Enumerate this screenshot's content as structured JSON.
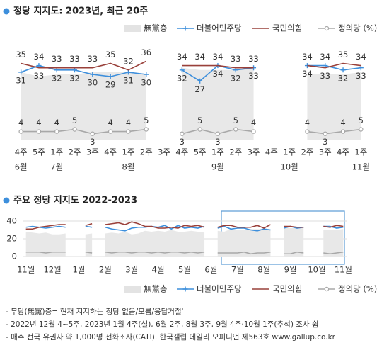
{
  "chart_data": [
    {
      "type": "line",
      "title": "정당 지지도: 2023년, 최근 20주",
      "categories": [
        "4주",
        "5주",
        "1주",
        "2주",
        "3주",
        "4주",
        "1주",
        "2주",
        "3주",
        "4주",
        "5주",
        "1주",
        "2주",
        "3주",
        "4주",
        "1주",
        "2주",
        "3주",
        "4주",
        "1주"
      ],
      "month_labels": [
        "6월",
        null,
        "7월",
        null,
        null,
        null,
        "8월",
        null,
        null,
        null,
        null,
        "9월",
        null,
        null,
        null,
        "10월",
        null,
        null,
        null,
        "11월"
      ],
      "ylim": [
        0,
        40
      ],
      "data_labels": true,
      "series": [
        {
          "name": "無黨층",
          "color": "#e8e8e8",
          "style": "area",
          "values": [
            31,
            29,
            30,
            30,
            31,
            31,
            31,
            30,
            null,
            33,
            32,
            32,
            32,
            33,
            null,
            null,
            30,
            30,
            30,
            31
          ]
        },
        {
          "name": "더불어민주당",
          "color": "#3d8fdc",
          "style": "line",
          "marker": "plus",
          "values": [
            31,
            34,
            32,
            32,
            30,
            29,
            31,
            30,
            null,
            32,
            27,
            34,
            32,
            33,
            null,
            null,
            34,
            34,
            32,
            33
          ]
        },
        {
          "name": "국민의힘",
          "color": "#99403a",
          "style": "line",
          "marker": "none",
          "values": [
            35,
            33,
            33,
            33,
            33,
            35,
            32,
            36,
            null,
            34,
            34,
            34,
            33,
            33,
            null,
            null,
            34,
            33,
            35,
            34
          ]
        },
        {
          "name": "정의당 (%)",
          "color": "#a8a8a8",
          "style": "line",
          "marker": "circle",
          "values": [
            4,
            4,
            4,
            5,
            3,
            4,
            4,
            5,
            null,
            3,
            5,
            3,
            5,
            4,
            null,
            null,
            4,
            3,
            4,
            5
          ]
        }
      ]
    },
    {
      "type": "line",
      "title": "주요 정당 지지도 2022-2023",
      "categories": [
        "11월",
        null,
        null,
        null,
        "12월",
        null,
        null,
        null,
        "1월",
        null,
        null,
        null,
        "2월",
        null,
        null,
        null,
        "3월",
        null,
        null,
        null,
        "4월",
        null,
        null,
        null,
        "5월",
        null,
        null,
        null,
        "6월",
        null,
        null,
        null,
        "7월",
        null,
        null,
        null,
        "8월",
        null,
        null,
        null,
        "9월",
        null,
        null,
        null,
        "10월",
        null,
        null,
        null,
        "11월"
      ],
      "ylim": [
        0,
        40
      ],
      "yticks": [
        0,
        20,
        40
      ],
      "grid": true,
      "data_labels": false,
      "series": [
        {
          "name": "無黨층",
          "color": "#e8e8e8",
          "style": "area",
          "values": [
            28,
            27,
            26,
            27,
            25,
            25,
            26,
            null,
            null,
            25,
            26,
            null,
            26,
            27,
            26,
            28,
            25,
            26,
            29,
            28,
            29,
            28,
            30,
            28,
            28,
            29,
            28,
            27,
            null,
            29,
            28,
            31,
            30,
            30,
            31,
            31,
            31,
            30,
            null,
            33,
            32,
            32,
            33,
            null,
            null,
            30,
            30,
            30,
            31
          ]
        },
        {
          "name": "더불어민주당",
          "color": "#3d8fdc",
          "style": "line",
          "marker": "none",
          "values": [
            33,
            34,
            33,
            32,
            33,
            34,
            33,
            null,
            null,
            34,
            33,
            null,
            33,
            31,
            30,
            29,
            32,
            33,
            33,
            34,
            33,
            35,
            31,
            35,
            32,
            33,
            32,
            34,
            null,
            32,
            34,
            31,
            32,
            32,
            30,
            29,
            31,
            30,
            null,
            32,
            34,
            32,
            33,
            null,
            null,
            34,
            34,
            32,
            33
          ]
        },
        {
          "name": "국민의힘",
          "color": "#99403a",
          "style": "line",
          "marker": "none",
          "values": [
            31,
            31,
            33,
            34,
            35,
            36,
            36,
            null,
            null,
            35,
            37,
            null,
            36,
            37,
            38,
            36,
            39,
            37,
            34,
            34,
            32,
            32,
            33,
            32,
            35,
            34,
            35,
            33,
            null,
            33,
            35,
            35,
            33,
            33,
            33,
            35,
            32,
            36,
            null,
            34,
            34,
            33,
            33,
            null,
            null,
            34,
            33,
            35,
            34
          ]
        },
        {
          "name": "정의당 (%)",
          "color": "#a8a8a8",
          "style": "line",
          "marker": "none",
          "values": [
            5,
            5,
            5,
            4,
            5,
            5,
            5,
            null,
            null,
            5,
            4,
            null,
            5,
            4,
            5,
            5,
            4,
            5,
            5,
            4,
            5,
            4,
            5,
            5,
            4,
            5,
            4,
            5,
            null,
            4,
            4,
            4,
            4,
            5,
            3,
            4,
            4,
            5,
            null,
            3,
            3,
            5,
            4,
            null,
            null,
            4,
            3,
            4,
            5
          ]
        }
      ]
    }
  ],
  "notes": [
    "- 무당(無黨)층='현재 지지하는 정당 없음/모름/응답거절'",
    "- 2022년 12월 4~5주, 2023년 1월 4주(설), 6월 2주, 8월 3주, 9월 4주·10월 1주(추석) 조사 쉼",
    "- 매주 전국 유권자 약 1,000명 전화조사(CATI). 한국갤럽 데일리 오피니언 제563호 www.gallup.co.kr"
  ]
}
